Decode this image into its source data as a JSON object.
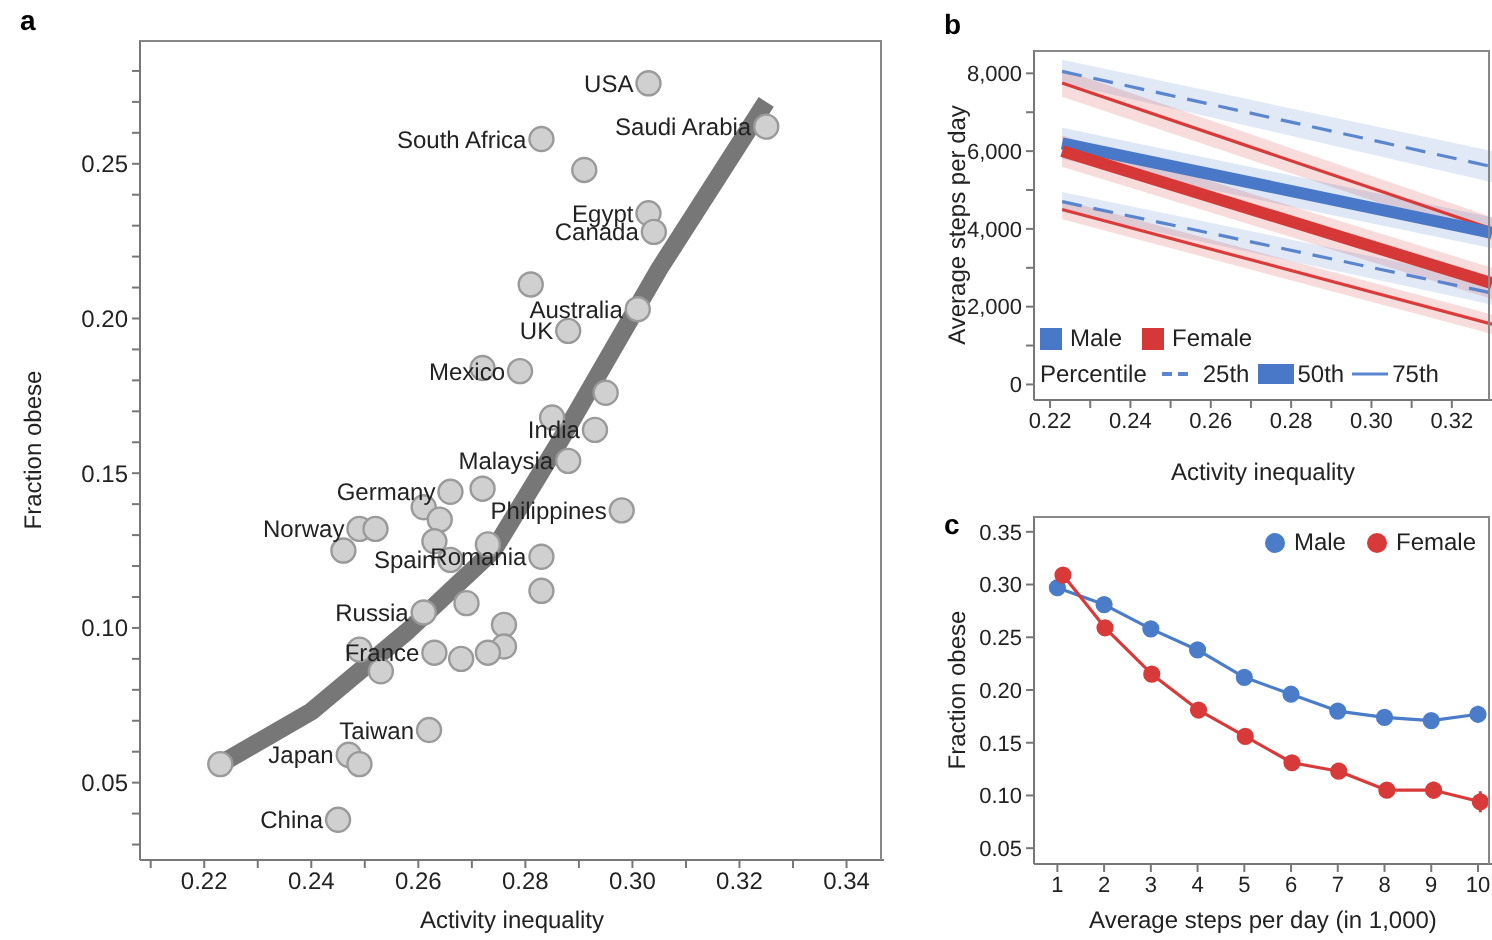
{
  "chart_data": [
    {
      "type": "scatter",
      "title": "a",
      "xlabel": "Activity inequality",
      "ylabel": "Fraction obese",
      "xlim": [
        0.208,
        0.347
      ],
      "ylim": [
        0.025,
        0.29
      ],
      "xticks": [
        {
          "value": 0.21,
          "label": null
        },
        0.22,
        {
          "value": 0.23,
          "label": null
        },
        0.24,
        {
          "value": 0.25,
          "label": null
        },
        0.26,
        {
          "value": 0.27,
          "label": null
        },
        0.28,
        {
          "value": 0.29,
          "label": null
        },
        {
          "value": 0.3,
          "label": "0.30"
        },
        {
          "value": 0.31,
          "label": null
        },
        0.32,
        {
          "value": 0.33,
          "label": null
        },
        0.34
      ],
      "yticks": [
        {
          "value": 0.03,
          "label": null
        },
        {
          "value": 0.04,
          "label": null
        },
        0.05,
        {
          "value": 0.06,
          "label": null
        },
        {
          "value": 0.07,
          "label": null
        },
        {
          "value": 0.08,
          "label": null
        },
        {
          "value": 0.09,
          "label": null
        },
        {
          "value": 0.1,
          "label": "0.10"
        },
        {
          "value": 0.11,
          "label": null
        },
        {
          "value": 0.12,
          "label": null
        },
        {
          "value": 0.13,
          "label": null
        },
        {
          "value": 0.14,
          "label": null
        },
        0.15,
        {
          "value": 0.16,
          "label": null
        },
        {
          "value": 0.17,
          "label": null
        },
        {
          "value": 0.18,
          "label": null
        },
        {
          "value": 0.19,
          "label": null
        },
        {
          "value": 0.2,
          "label": "0.20"
        },
        {
          "value": 0.21,
          "label": null
        },
        {
          "value": 0.22,
          "label": null
        },
        {
          "value": 0.23,
          "label": null
        },
        {
          "value": 0.24,
          "label": null
        },
        0.25,
        {
          "value": 0.26,
          "label": null
        },
        {
          "value": 0.27,
          "label": null
        },
        {
          "value": 0.28,
          "label": null
        }
      ],
      "series": [
        {
          "type": "scatter",
          "color": "#d0d0d0",
          "x": [
            0.303,
            0.325,
            0.283,
            0.291,
            0.303,
            0.304,
            0.281,
            0.301,
            0.288,
            0.272,
            0.279,
            0.295,
            0.285,
            0.293,
            0.288,
            0.272,
            0.266,
            0.261,
            0.264,
            0.298,
            0.263,
            0.273,
            0.283,
            0.266,
            0.283,
            0.269,
            0.261,
            0.276,
            0.276,
            0.263,
            0.268,
            0.273,
            0.262,
            0.249,
            0.252,
            0.246,
            0.249,
            0.253,
            0.247,
            0.249,
            0.245,
            0.223
          ],
          "values": [
            0.276,
            0.262,
            0.258,
            0.248,
            0.234,
            0.228,
            0.211,
            0.203,
            0.196,
            0.184,
            0.183,
            0.176,
            0.168,
            0.164,
            0.154,
            0.145,
            0.144,
            0.139,
            0.135,
            0.138,
            0.128,
            0.127,
            0.123,
            0.122,
            0.112,
            0.108,
            0.105,
            0.101,
            0.094,
            0.092,
            0.09,
            0.092,
            0.067,
            0.132,
            0.132,
            0.125,
            0.093,
            0.086,
            0.059,
            0.056,
            0.038,
            0.056
          ],
          "value_labels": [
            "USA",
            "Saudi Arabia",
            "South Africa",
            null,
            "Egypt",
            "Canada",
            null,
            "Australia",
            "UK",
            null,
            "Mexico",
            null,
            null,
            "India",
            "Malaysia",
            null,
            "Germany",
            null,
            null,
            "Philippines",
            null,
            null,
            "Romania",
            "Spain",
            null,
            null,
            "Russia",
            null,
            null,
            "France",
            null,
            null,
            "Taiwan",
            "Norway",
            null,
            null,
            null,
            null,
            "Japan",
            null,
            "China",
            null
          ]
        },
        {
          "type": "line",
          "color": "#777777",
          "x": [
            0.223,
            0.24,
            0.258,
            0.274,
            0.287,
            0.305,
            0.325
          ],
          "values": [
            0.056,
            0.073,
            0.099,
            0.125,
            0.162,
            0.216,
            0.27
          ]
        }
      ]
    },
    {
      "type": "line",
      "title": "b",
      "xlabel": "Activity inequality",
      "ylabel": "Average steps per day",
      "legend": "bottom left",
      "legend_title": "Percentile",
      "annotations": [
        "25th",
        "50th",
        "75th"
      ],
      "xlim": [
        0.216,
        0.33
      ],
      "ylim": [
        -400,
        8600
      ],
      "xticks": [
        0.22,
        {
          "value": 0.23,
          "label": null
        },
        0.24,
        {
          "value": 0.25,
          "label": null
        },
        0.26,
        {
          "value": 0.27,
          "label": null
        },
        0.28,
        {
          "value": 0.29,
          "label": null
        },
        {
          "value": 0.3,
          "label": "0.30"
        },
        {
          "value": 0.31,
          "label": null
        },
        0.32
      ],
      "yticks": [
        0,
        {
          "value": 1000,
          "label": null
        },
        {
          "value": 2000,
          "label": "2,000"
        },
        {
          "value": 3000,
          "label": null
        },
        {
          "value": 4000,
          "label": "4,000"
        },
        {
          "value": 5000,
          "label": null
        },
        {
          "value": 6000,
          "label": "6,000"
        },
        {
          "value": 7000,
          "label": null
        },
        {
          "value": 8000,
          "label": "8,000"
        }
      ],
      "x": [
        0.223,
        0.33
      ],
      "series": [
        {
          "color": "#5b86cf",
          "line_style": "dashed",
          "values": [
            8050,
            5600
          ],
          "lower": [
            7750,
            5200
          ],
          "upper": [
            8350,
            6000
          ]
        },
        {
          "color": "#d83a3a",
          "line_style": "solid",
          "values": [
            7750,
            4000
          ],
          "lower": [
            7400,
            3700
          ],
          "upper": [
            8100,
            4300
          ]
        },
        {
          "name": "Male",
          "color": "#4a78c8",
          "line_style": "solid",
          "values": [
            6200,
            3900
          ],
          "lower": [
            5800,
            3500
          ],
          "upper": [
            6600,
            4300
          ]
        },
        {
          "name": "Female",
          "color": "#d63838",
          "line_style": "solid",
          "values": [
            6000,
            2600
          ],
          "lower": [
            5600,
            2200
          ],
          "upper": [
            6400,
            3000
          ]
        },
        {
          "color": "#5a84ce",
          "line_style": "dashed",
          "values": [
            4700,
            2350
          ],
          "lower": [
            4450,
            2050
          ],
          "upper": [
            4950,
            2650
          ]
        },
        {
          "color": "#da3c3c",
          "line_style": "solid",
          "values": [
            4500,
            1550
          ],
          "lower": [
            4250,
            1300
          ],
          "upper": [
            4750,
            1800
          ]
        }
      ]
    },
    {
      "type": "line",
      "title": "c",
      "xlabel": "Average steps per day (in 1,000)",
      "ylabel": "Fraction obese",
      "legend": "top right",
      "marker": "circle",
      "xlim": [
        0.5,
        10.3
      ],
      "ylim": [
        0.035,
        0.365
      ],
      "xticks": [
        1,
        2,
        3,
        4,
        5,
        6,
        7,
        8,
        9,
        10
      ],
      "yticks": [
        {
          "value": 0.05,
          "label": "0.05"
        },
        {
          "value": 0.1,
          "label": "0.10"
        },
        {
          "value": 0.15,
          "label": "0.15"
        },
        {
          "value": 0.2,
          "label": "0.20"
        },
        {
          "value": 0.25,
          "label": "0.25"
        },
        {
          "value": 0.3,
          "label": "0.30"
        },
        {
          "value": 0.35,
          "label": "0.35"
        }
      ],
      "series": [
        {
          "name": "Male",
          "color": "#4a7cc9",
          "x": [
            1,
            2,
            3,
            4,
            5,
            6,
            7,
            8,
            9,
            10
          ],
          "values": [
            0.297,
            0.281,
            0.258,
            0.238,
            0.212,
            0.196,
            0.18,
            0.174,
            0.171,
            0.177
          ],
          "errors": [
            0.008,
            0.004,
            0.003,
            0.003,
            0.003,
            0.003,
            0.004,
            0.004,
            0.006,
            0.008
          ]
        },
        {
          "name": "Female",
          "color": "#d83a3a",
          "x": [
            1.12,
            2.02,
            3.02,
            4.02,
            5.02,
            6.02,
            7.02,
            8.05,
            9.05,
            10.05
          ],
          "values": [
            0.309,
            0.259,
            0.215,
            0.181,
            0.156,
            0.131,
            0.123,
            0.105,
            0.105,
            0.094
          ],
          "errors": [
            0.005,
            0.003,
            0.003,
            0.003,
            0.003,
            0.004,
            0.004,
            0.007,
            0.008,
            0.01
          ]
        }
      ]
    }
  ]
}
